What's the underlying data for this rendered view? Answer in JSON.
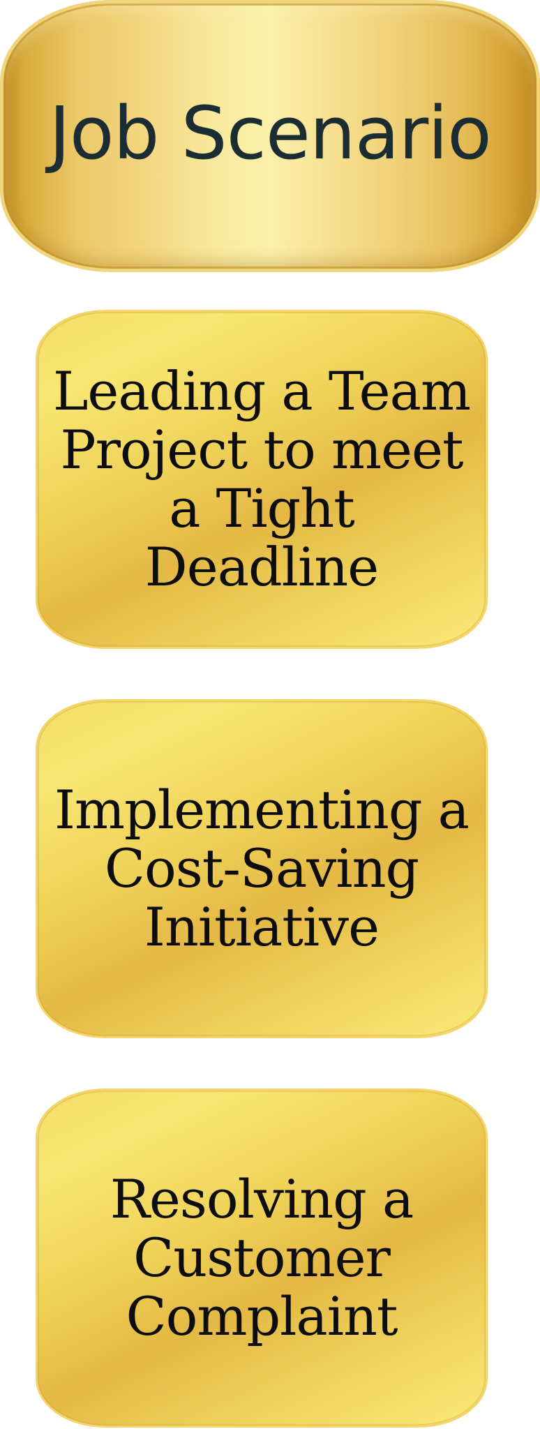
{
  "header": {
    "title": "Job Scenario"
  },
  "scenarios": [
    {
      "label": "Leading a Team Project to meet a Tight Deadline"
    },
    {
      "label": "Implementing a Cost-Saving Initiative"
    },
    {
      "label": "Resolving a Customer Complaint"
    }
  ],
  "colors": {
    "header_gold_light": "#fcf1aa",
    "header_gold_dark": "#bf8a1c",
    "card_gold_light": "#fbe97a",
    "card_gold_dark": "#e4b845",
    "header_text": "#1b2d33",
    "card_text": "#0d0d0d"
  }
}
